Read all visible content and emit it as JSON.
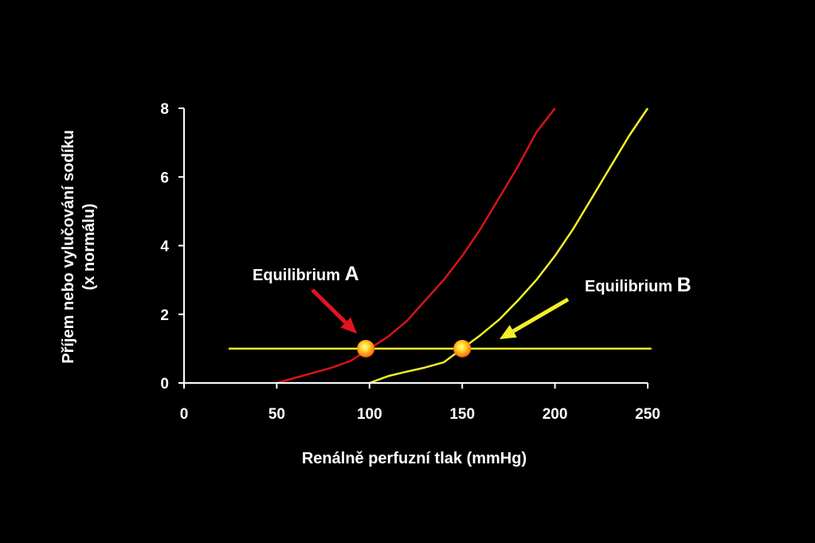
{
  "chart_data": {
    "type": "line",
    "xlabel": "Renálně perfuzní tlak (mmHg)",
    "ylabel_line1": "Příjem nebo vylučování sodíku",
    "ylabel_line2": "(x normálu)",
    "xlim": [
      0,
      250
    ],
    "ylim": [
      0,
      8
    ],
    "x_ticks": [
      0,
      50,
      100,
      150,
      200,
      250
    ],
    "y_ticks": [
      0,
      2,
      4,
      6,
      8
    ],
    "grid": false,
    "series": [
      {
        "color": "#d81418",
        "points": [
          [
            50,
            0
          ],
          [
            60,
            0.15
          ],
          [
            70,
            0.3
          ],
          [
            80,
            0.45
          ],
          [
            90,
            0.65
          ],
          [
            100,
            1.0
          ],
          [
            110,
            1.35
          ],
          [
            120,
            1.8
          ],
          [
            130,
            2.4
          ],
          [
            140,
            3.0
          ],
          [
            150,
            3.7
          ],
          [
            160,
            4.5
          ],
          [
            170,
            5.4
          ],
          [
            180,
            6.3
          ],
          [
            190,
            7.3
          ],
          [
            200,
            8.0
          ]
        ]
      },
      {
        "color": "#f2ef2a",
        "points": [
          [
            100,
            0
          ],
          [
            110,
            0.2
          ],
          [
            120,
            0.33
          ],
          [
            130,
            0.45
          ],
          [
            140,
            0.6
          ],
          [
            150,
            1.0
          ],
          [
            160,
            1.4
          ],
          [
            170,
            1.85
          ],
          [
            180,
            2.4
          ],
          [
            190,
            3.0
          ],
          [
            200,
            3.7
          ],
          [
            210,
            4.5
          ],
          [
            220,
            5.4
          ],
          [
            230,
            6.3
          ],
          [
            240,
            7.2
          ],
          [
            250,
            8.0
          ]
        ]
      },
      {
        "color": "#f2ef2a",
        "points": [
          [
            24,
            1
          ],
          [
            252,
            1
          ]
        ]
      }
    ],
    "equilibria": [
      {
        "x": 98,
        "y": 1
      },
      {
        "x": 150,
        "y": 1
      }
    ],
    "annotations": [
      {
        "prefix": "Equilibrium ",
        "letter": "A",
        "arrow_color": "#e4141e"
      },
      {
        "prefix": "Equilibrium ",
        "letter": "B",
        "arrow_color": "#f2ef2a"
      }
    ],
    "colors": {
      "background": "#000000",
      "axis": "#ffffff"
    }
  }
}
